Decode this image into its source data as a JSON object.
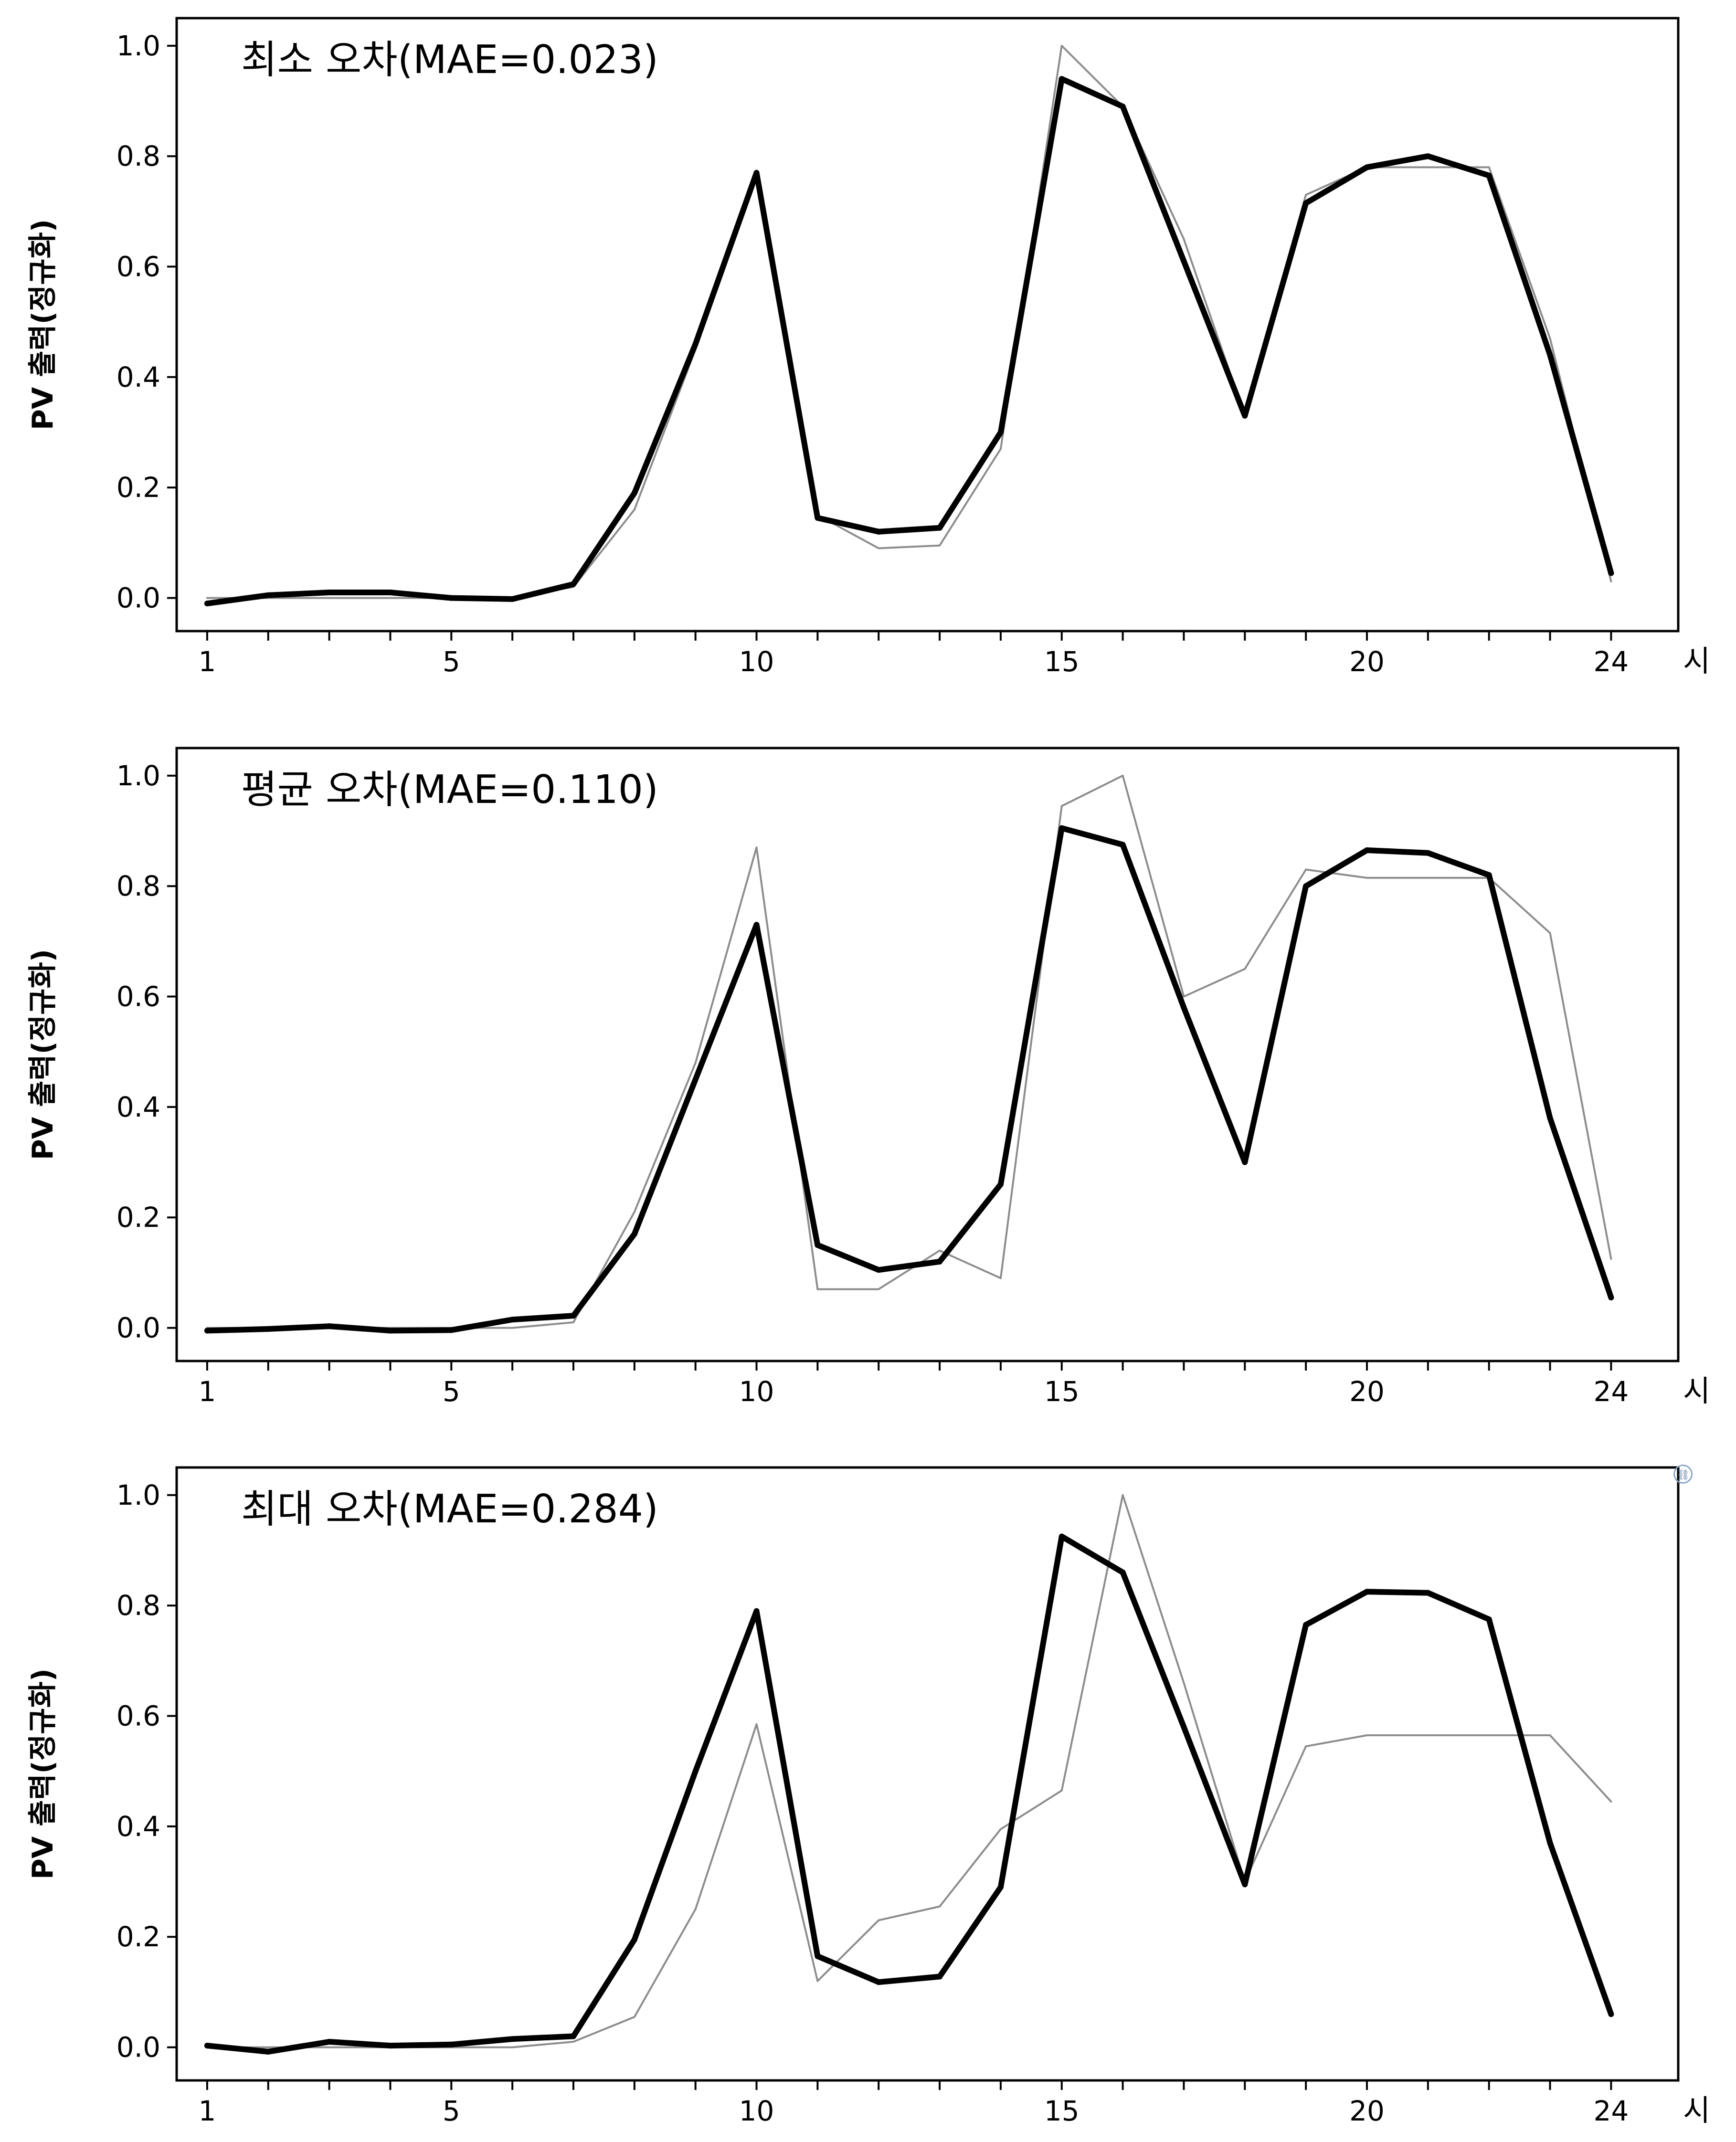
{
  "chart_data": [
    {
      "type": "line",
      "annotation": "최소 오차(MAE=0.023)",
      "ylabel": "PV 출력(정규화)",
      "x_unit_label": "시",
      "x_tick_labels": [
        "1",
        "5",
        "10",
        "15",
        "20",
        "24"
      ],
      "y_tick_labels": [
        "0.0",
        "0.2",
        "0.4",
        "0.6",
        "0.8",
        "1.0"
      ],
      "xlim": [
        0.5,
        25.1
      ],
      "ylim": [
        -0.06,
        1.05
      ],
      "grid": false,
      "x": [
        1,
        2,
        3,
        4,
        5,
        6,
        7,
        8,
        9,
        10,
        11,
        12,
        13,
        14,
        15,
        16,
        17,
        18,
        19,
        20,
        21,
        22,
        23,
        24
      ],
      "series": [
        {
          "style": "thin-gray",
          "values": [
            0.0,
            0.0,
            0.0,
            0.0,
            0.0,
            0.0,
            0.02,
            0.16,
            0.45,
            0.77,
            0.15,
            0.09,
            0.095,
            0.27,
            1.0,
            0.89,
            0.65,
            0.33,
            0.73,
            0.78,
            0.78,
            0.78,
            0.47,
            0.03
          ]
        },
        {
          "style": "thick-black",
          "values": [
            -0.01,
            0.005,
            0.01,
            0.01,
            0.0,
            -0.002,
            0.025,
            0.19,
            0.46,
            0.77,
            0.145,
            0.12,
            0.127,
            0.3,
            0.94,
            0.89,
            0.61,
            0.33,
            0.715,
            0.78,
            0.8,
            0.765,
            0.44,
            0.045
          ]
        }
      ]
    },
    {
      "type": "line",
      "annotation": "평균 오차(MAE=0.110)",
      "ylabel": "PV 출력(정규화)",
      "x_unit_label": "시",
      "x_tick_labels": [
        "1",
        "5",
        "10",
        "15",
        "20",
        "24"
      ],
      "y_tick_labels": [
        "0.0",
        "0.2",
        "0.4",
        "0.6",
        "0.8",
        "1.0"
      ],
      "xlim": [
        0.5,
        25.1
      ],
      "ylim": [
        -0.06,
        1.05
      ],
      "grid": false,
      "x": [
        1,
        2,
        3,
        4,
        5,
        6,
        7,
        8,
        9,
        10,
        11,
        12,
        13,
        14,
        15,
        16,
        17,
        18,
        19,
        20,
        21,
        22,
        23,
        24
      ],
      "series": [
        {
          "style": "thin-gray",
          "values": [
            0.0,
            0.0,
            0.0,
            0.0,
            0.0,
            0.0,
            0.01,
            0.21,
            0.48,
            0.87,
            0.07,
            0.07,
            0.14,
            0.09,
            0.945,
            1.0,
            0.6,
            0.65,
            0.83,
            0.815,
            0.815,
            0.815,
            0.715,
            0.125
          ]
        },
        {
          "style": "thick-black",
          "values": [
            -0.005,
            -0.002,
            0.003,
            -0.005,
            -0.004,
            0.015,
            0.022,
            0.17,
            0.45,
            0.73,
            0.15,
            0.105,
            0.12,
            0.26,
            0.905,
            0.875,
            0.58,
            0.3,
            0.8,
            0.865,
            0.86,
            0.82,
            0.38,
            0.055
          ]
        }
      ]
    },
    {
      "type": "line",
      "annotation": "최대 오차(MAE=0.284)",
      "ylabel": "PV 출력(정규화)",
      "x_unit_label": "시",
      "x_tick_labels": [
        "1",
        "5",
        "10",
        "15",
        "20",
        "24"
      ],
      "y_tick_labels": [
        "0.0",
        "0.2",
        "0.4",
        "0.6",
        "0.8",
        "1.0"
      ],
      "xlim": [
        0.5,
        25.1
      ],
      "ylim": [
        -0.06,
        1.05
      ],
      "grid": false,
      "x": [
        1,
        2,
        3,
        4,
        5,
        6,
        7,
        8,
        9,
        10,
        11,
        12,
        13,
        14,
        15,
        16,
        17,
        18,
        19,
        20,
        21,
        22,
        23,
        24
      ],
      "series": [
        {
          "style": "thin-gray",
          "values": [
            0.0,
            0.0,
            0.0,
            0.0,
            0.0,
            0.0,
            0.01,
            0.055,
            0.25,
            0.585,
            0.12,
            0.23,
            0.255,
            0.395,
            0.465,
            1.0,
            0.66,
            0.3,
            0.545,
            0.565,
            0.565,
            0.565,
            0.565,
            0.445
          ]
        },
        {
          "style": "thick-black",
          "values": [
            0.003,
            -0.008,
            0.01,
            0.003,
            0.005,
            0.015,
            0.02,
            0.195,
            0.5,
            0.79,
            0.165,
            0.118,
            0.128,
            0.29,
            0.925,
            0.86,
            0.58,
            0.295,
            0.765,
            0.825,
            0.823,
            0.775,
            0.37,
            0.06
          ]
        }
      ]
    }
  ],
  "icons": {
    "corner_badge": "link-icon"
  }
}
